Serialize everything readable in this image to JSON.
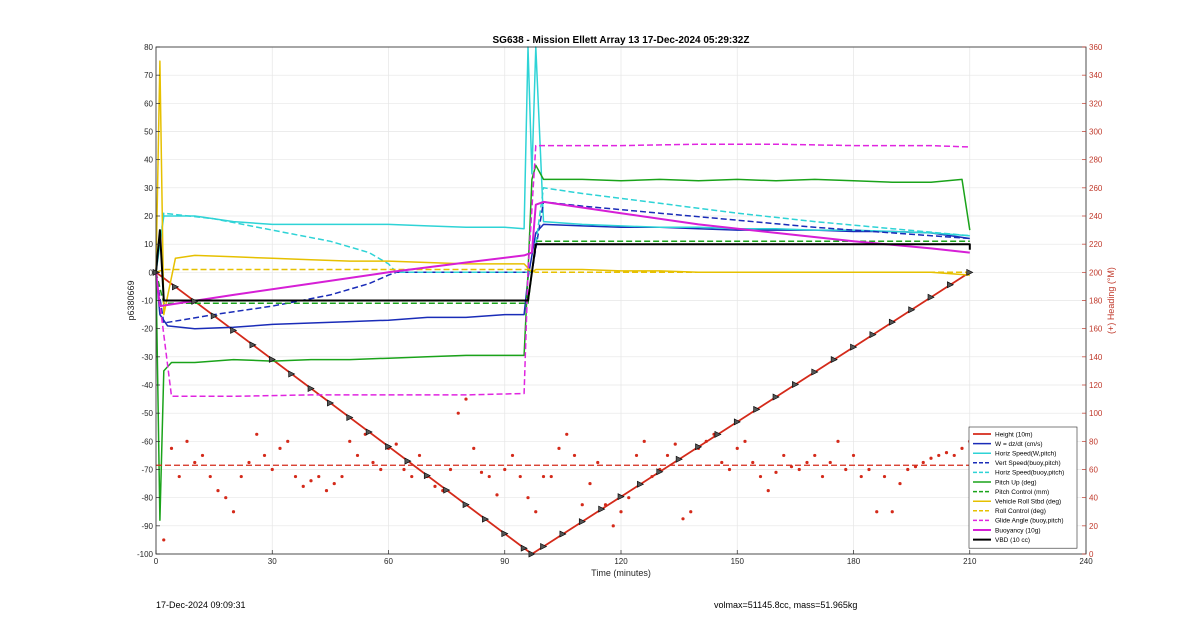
{
  "chart_data": {
    "type": "line",
    "title": "SG638 - Mission Ellett Array 13 17-Dec-2024 05:29:32Z",
    "xlabel": "Time (minutes)",
    "ylabel": "p6380669",
    "y2label": "(+) Heading (°M)",
    "xlim": [
      0,
      240
    ],
    "ylim": [
      -100,
      80
    ],
    "y2lim": [
      0,
      360
    ],
    "xticks": [
      0,
      30,
      60,
      90,
      120,
      150,
      180,
      210,
      240
    ],
    "yticks": [
      -100,
      -90,
      -80,
      -70,
      -60,
      -50,
      -40,
      -30,
      -20,
      -10,
      0,
      10,
      20,
      30,
      40,
      50,
      60,
      70,
      80
    ],
    "y2ticks": [
      0,
      20,
      40,
      60,
      80,
      100,
      120,
      140,
      160,
      180,
      200,
      220,
      240,
      260,
      280,
      300,
      320,
      340,
      360
    ],
    "grid": true,
    "legend_position": "bottom-right",
    "footer_left": "17-Dec-2024 09:09:31",
    "footer_right": "volmax=51145.8cc, mass=51.965kg",
    "series": [
      {
        "name": "Height (10m)",
        "color": "#d42a1a",
        "style": "solid",
        "width": 1.8,
        "x": [
          0,
          97,
          210
        ],
        "y": [
          0,
          -100,
          0
        ]
      },
      {
        "name": "W = dz/dt (cm/s)",
        "color": "#1a2cb8",
        "style": "solid",
        "width": 1.5,
        "x": [
          0,
          1,
          3,
          10,
          20,
          30,
          40,
          50,
          60,
          70,
          80,
          90,
          95,
          96,
          98,
          100,
          110,
          120,
          130,
          140,
          150,
          160,
          170,
          180,
          190,
          200,
          210
        ],
        "y": [
          0,
          -15,
          -19,
          -20,
          -19.5,
          -18.5,
          -18,
          -17.5,
          -17,
          -16,
          -16,
          -15,
          -15,
          -2,
          14,
          17,
          16.5,
          16,
          16,
          15.5,
          15,
          15,
          15,
          14.5,
          14.5,
          14,
          12
        ]
      },
      {
        "name": "Horiz Speed(W,pitch)",
        "color": "#2ed3d6",
        "style": "solid",
        "width": 1.5,
        "x": [
          0,
          2,
          10,
          20,
          30,
          40,
          50,
          60,
          70,
          80,
          90,
          95,
          96,
          97,
          98,
          100,
          110,
          120,
          130,
          140,
          150,
          160,
          170,
          180,
          190,
          200,
          210
        ],
        "y": [
          0,
          20,
          20,
          18,
          17,
          17,
          17,
          17,
          16.5,
          16,
          16,
          15.5,
          80,
          35,
          80,
          18,
          17,
          16.5,
          16,
          16,
          15.5,
          15.5,
          15,
          15,
          14.5,
          14,
          13
        ]
      },
      {
        "name": "Vert Speed(buoy,pitch)",
        "color": "#1a2cb8",
        "style": "dashed",
        "width": 1.5,
        "x": [
          0,
          2,
          15,
          30,
          45,
          55,
          60,
          62,
          97,
          100,
          110,
          130,
          150,
          170,
          190,
          210
        ],
        "y": [
          0,
          -18,
          -15,
          -12,
          -8,
          -4,
          -1,
          0,
          0,
          25,
          23.5,
          21,
          18.5,
          16,
          14,
          12
        ]
      },
      {
        "name": "Horiz Speed(buoy,pitch)",
        "color": "#2ed3d6",
        "style": "dashed",
        "width": 1.5,
        "x": [
          0,
          2,
          15,
          30,
          45,
          55,
          60,
          62,
          97,
          100,
          110,
          130,
          150,
          170,
          190,
          210
        ],
        "y": [
          0,
          21,
          19,
          15,
          11,
          7,
          3,
          0,
          0,
          30,
          28,
          24.5,
          21,
          18,
          15.5,
          13
        ]
      },
      {
        "name": "Pitch Up (deg)",
        "color": "#1aa31a",
        "style": "solid",
        "width": 1.5,
        "x": [
          0,
          1,
          2,
          4,
          10,
          20,
          30,
          40,
          50,
          60,
          70,
          80,
          90,
          95,
          96,
          97,
          98,
          100,
          110,
          120,
          130,
          140,
          150,
          160,
          170,
          180,
          190,
          200,
          208,
          210
        ],
        "y": [
          0,
          -88,
          -35,
          -32,
          -32,
          -31,
          -31.5,
          -31,
          -31,
          -30.5,
          -30,
          -29.5,
          -29.5,
          -29.5,
          0,
          33,
          38,
          33,
          33,
          32.5,
          33,
          32.5,
          33,
          32.5,
          33,
          32.5,
          32,
          32,
          33,
          15
        ]
      },
      {
        "name": "Pitch Control (mm)",
        "color": "#1aa31a",
        "style": "dashed",
        "width": 1.5,
        "x": [
          0,
          2,
          96,
          98,
          210
        ],
        "y": [
          0,
          -11,
          -11,
          11,
          11
        ]
      },
      {
        "name": "Vehicle Roll Stbd (deg)",
        "color": "#e6c000",
        "style": "solid",
        "width": 1.5,
        "x": [
          0,
          1,
          2,
          5,
          10,
          20,
          30,
          40,
          50,
          60,
          70,
          80,
          90,
          95,
          97,
          98,
          100,
          110,
          120,
          130,
          140,
          150,
          160,
          170,
          180,
          190,
          200,
          210
        ],
        "y": [
          0,
          75,
          -15,
          5,
          6,
          5.5,
          5,
          4.5,
          4,
          4,
          3.5,
          3,
          3,
          3,
          0,
          1,
          1,
          1,
          0.5,
          0.5,
          0,
          0,
          0,
          0,
          0,
          0,
          0,
          -1
        ]
      },
      {
        "name": "Roll Control (deg)",
        "color": "#e6c000",
        "style": "dashed",
        "width": 1.5,
        "x": [
          0,
          2,
          96,
          98,
          210
        ],
        "y": [
          0,
          1,
          1,
          0,
          0
        ]
      },
      {
        "name": "Glide Angle (buoy,pitch)",
        "color": "#e025e0",
        "style": "dashed",
        "width": 1.5,
        "x": [
          0,
          4,
          20,
          40,
          60,
          80,
          95,
          96,
          98,
          100,
          120,
          140,
          160,
          180,
          200,
          210
        ],
        "y": [
          0,
          -44,
          -44,
          -43.5,
          -43.5,
          -43.5,
          -43,
          0,
          45,
          45,
          45,
          45.5,
          45.5,
          45,
          45,
          44.5
        ]
      },
      {
        "name": "Buoyancy (10g)",
        "color": "#d61fd6",
        "style": "solid",
        "width": 2,
        "x": [
          0,
          1,
          20,
          40,
          60,
          80,
          95,
          97,
          98,
          100,
          120,
          140,
          160,
          180,
          200,
          210
        ],
        "y": [
          0,
          -12,
          -8,
          -4,
          0,
          3.5,
          6,
          7,
          24,
          25,
          21,
          17,
          14,
          11,
          8.5,
          7
        ]
      },
      {
        "name": "VBD (10 cc)",
        "color": "#000000",
        "style": "solid",
        "width": 2,
        "x": [
          0,
          1,
          2,
          95,
          96,
          98,
          100,
          210,
          210
        ],
        "y": [
          0,
          15,
          -10,
          -10,
          -10,
          10,
          10,
          10,
          8
        ]
      }
    ],
    "heading_series": {
      "name": "Heading",
      "color": "#d42a1a",
      "axis": "right",
      "mean": 63,
      "x": [
        2,
        4,
        6,
        8,
        10,
        12,
        14,
        16,
        18,
        20,
        22,
        24,
        26,
        28,
        30,
        32,
        34,
        36,
        38,
        40,
        42,
        44,
        46,
        48,
        50,
        52,
        54,
        56,
        58,
        60,
        62,
        64,
        66,
        68,
        70,
        72,
        74,
        76,
        78,
        80,
        82,
        84,
        86,
        88,
        90,
        92,
        94,
        96,
        98,
        100,
        102,
        104,
        106,
        108,
        110,
        112,
        114,
        116,
        118,
        120,
        122,
        124,
        126,
        128,
        130,
        132,
        134,
        136,
        138,
        140,
        142,
        144,
        146,
        148,
        150,
        152,
        154,
        156,
        158,
        160,
        162,
        164,
        166,
        168,
        170,
        172,
        174,
        176,
        178,
        180,
        182,
        184,
        186,
        188,
        190,
        192,
        194,
        196,
        198,
        200,
        202,
        204,
        206,
        208,
        210
      ],
      "y": [
        10,
        75,
        55,
        80,
        65,
        70,
        55,
        45,
        40,
        30,
        55,
        65,
        85,
        70,
        60,
        75,
        80,
        55,
        48,
        52,
        55,
        45,
        50,
        55,
        80,
        70,
        85,
        65,
        60,
        75,
        78,
        60,
        55,
        70,
        55,
        48,
        45,
        60,
        100,
        110,
        75,
        58,
        55,
        42,
        60,
        70,
        55,
        40,
        30,
        55,
        55,
        75,
        85,
        70,
        35,
        50,
        65,
        35,
        20,
        30,
        40,
        70,
        80,
        55,
        60,
        70,
        78,
        25,
        30,
        75,
        80,
        85,
        65,
        60,
        75,
        80,
        65,
        55,
        45,
        58,
        70,
        62,
        60,
        65,
        70,
        55,
        65,
        80,
        60,
        70,
        55,
        60,
        30,
        55,
        30,
        50,
        60,
        62,
        65,
        68,
        70,
        72,
        70,
        75,
        80
      ]
    },
    "height_markers_x": [
      0,
      5,
      10,
      15,
      20,
      25,
      30,
      35,
      40,
      45,
      50,
      55,
      60,
      65,
      70,
      75,
      80,
      85,
      90,
      95,
      97,
      100,
      105,
      110,
      115,
      120,
      125,
      130,
      135,
      140,
      145,
      150,
      155,
      160,
      165,
      170,
      175,
      180,
      185,
      190,
      195,
      200,
      205,
      210
    ]
  }
}
